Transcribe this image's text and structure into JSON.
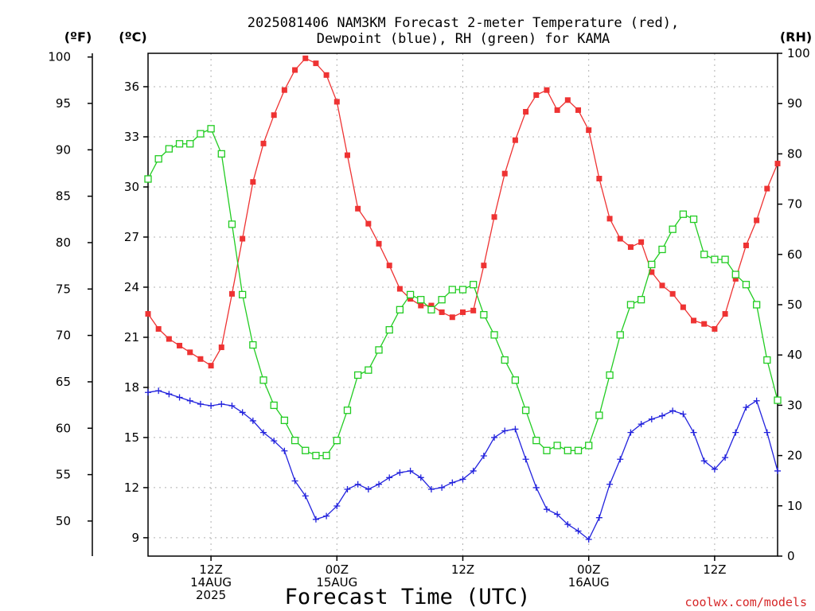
{
  "chart_data": {
    "type": "line",
    "title_lines": [
      "2025081406 NAM3KM Forecast 2-meter Temperature (red),",
      "Dewpoint (blue), RH (green) for KAMA"
    ],
    "xlabel": "Forecast Time (UTC)",
    "credit": "coolwx.com/models",
    "unit_labels": {
      "fahrenheit": "(ºF)",
      "celsius": "(ºC)",
      "rh": "(RH)"
    },
    "x_range_hours": [
      0,
      60
    ],
    "x_tick_labels": [
      {
        "hour": 6,
        "lines": [
          "12Z",
          "14AUG",
          "2025"
        ]
      },
      {
        "hour": 18,
        "lines": [
          "00Z",
          "15AUG"
        ]
      },
      {
        "hour": 30,
        "lines": [
          "12Z"
        ]
      },
      {
        "hour": 42,
        "lines": [
          "00Z",
          "16AUG"
        ]
      },
      {
        "hour": 54,
        "lines": [
          "12Z"
        ]
      }
    ],
    "celsius_axis": {
      "range": [
        7.9,
        38.0
      ],
      "ticks": [
        9,
        12,
        15,
        18,
        21,
        24,
        27,
        30,
        33,
        36
      ]
    },
    "fahrenheit_axis": {
      "ticks": [
        50,
        55,
        60,
        65,
        70,
        75,
        80,
        85,
        90,
        95,
        100
      ]
    },
    "rh_axis": {
      "range": [
        0,
        100
      ],
      "ticks": [
        0,
        10,
        20,
        30,
        40,
        50,
        60,
        70,
        80,
        90,
        100
      ]
    },
    "grid": true,
    "hours": [
      0,
      1,
      2,
      3,
      4,
      5,
      6,
      7,
      8,
      9,
      10,
      11,
      12,
      13,
      14,
      15,
      16,
      17,
      18,
      19,
      20,
      21,
      22,
      23,
      24,
      25,
      26,
      27,
      28,
      29,
      30,
      31,
      32,
      33,
      34,
      35,
      36,
      37,
      38,
      39,
      40,
      41,
      42,
      43,
      44,
      45,
      46,
      47,
      48,
      49,
      50,
      51,
      52,
      53,
      54,
      55,
      56,
      57,
      58,
      59,
      60
    ],
    "series": [
      {
        "name": "Temperature",
        "unit": "C",
        "color": "#ee3333",
        "marker": "filled-square",
        "values": [
          22.4,
          21.5,
          20.9,
          20.5,
          20.1,
          19.7,
          19.3,
          20.4,
          23.6,
          26.9,
          30.3,
          32.6,
          34.3,
          35.8,
          37.0,
          37.7,
          37.4,
          36.7,
          35.1,
          31.9,
          28.7,
          27.8,
          26.6,
          25.3,
          23.9,
          23.3,
          22.9,
          22.9,
          22.5,
          22.2,
          22.5,
          22.6,
          25.3,
          28.2,
          30.8,
          32.8,
          34.5,
          35.5,
          35.8,
          34.6,
          35.2,
          34.6,
          33.4,
          30.5,
          28.1,
          26.9,
          26.4,
          26.7,
          24.9,
          24.1,
          23.6,
          22.8,
          22.0,
          21.8,
          21.5,
          22.4,
          24.5,
          26.5,
          28.0,
          29.9,
          31.4
        ]
      },
      {
        "name": "Dewpoint",
        "unit": "C",
        "color": "#2222dd",
        "marker": "plus",
        "values": [
          17.7,
          17.8,
          17.6,
          17.4,
          17.2,
          17.0,
          16.9,
          17.0,
          16.9,
          16.5,
          16.0,
          15.3,
          14.8,
          14.2,
          12.4,
          11.5,
          10.1,
          10.3,
          10.9,
          11.9,
          12.2,
          11.9,
          12.2,
          12.6,
          12.9,
          13.0,
          12.6,
          11.9,
          12.0,
          12.3,
          12.5,
          13.0,
          13.9,
          15.0,
          15.4,
          15.5,
          13.7,
          12.0,
          10.7,
          10.4,
          9.8,
          9.4,
          8.9,
          10.2,
          12.2,
          13.7,
          15.3,
          15.8,
          16.1,
          16.3,
          16.6,
          16.4,
          15.3,
          13.6,
          13.1,
          13.8,
          15.3,
          16.8,
          17.2,
          15.3,
          13.0
        ]
      },
      {
        "name": "RH",
        "unit": "%",
        "color": "#22cc22",
        "marker": "open-square",
        "values": [
          75,
          79,
          81,
          82,
          82,
          84,
          85,
          80,
          66,
          52,
          42,
          35,
          30,
          27,
          23,
          21,
          20,
          20,
          23,
          29,
          36,
          37,
          41,
          45,
          49,
          52,
          51,
          49,
          51,
          53,
          53,
          54,
          48,
          44,
          39,
          35,
          29,
          23,
          21,
          22,
          21,
          21,
          22,
          28,
          36,
          44,
          50,
          51,
          58,
          61,
          65,
          68,
          67,
          60,
          59,
          59,
          56,
          54,
          50,
          39,
          31
        ]
      }
    ]
  }
}
